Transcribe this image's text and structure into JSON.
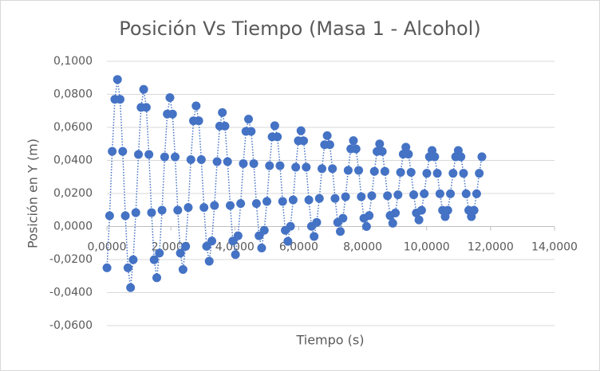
{
  "chart_data": {
    "type": "scatter",
    "title": "Posición Vs Tiempo (Masa 1 - Alcohol)",
    "x_label": "Tiempo (s)",
    "y_label": "Posición en Y (m)",
    "color": "#4472c4",
    "line_style": "dotted",
    "grid": true,
    "xlim": [
      0,
      14
    ],
    "ylim": [
      -0.06,
      0.1
    ],
    "xticks": [
      {
        "value": 0,
        "label": "0,0000"
      },
      {
        "value": 2,
        "label": "2,0000"
      },
      {
        "value": 4,
        "label": "4,0000"
      },
      {
        "value": 6,
        "label": "6,0000"
      },
      {
        "value": 8,
        "label": "8,0000"
      },
      {
        "value": 10,
        "label": "10,0000"
      },
      {
        "value": 12,
        "label": "12,0000"
      },
      {
        "value": 14,
        "label": "14,0000"
      }
    ],
    "yticks": [
      {
        "value": -0.06,
        "label": "-0,0600"
      },
      {
        "value": -0.04,
        "label": "-0,0400"
      },
      {
        "value": -0.02,
        "label": "-0,0200"
      },
      {
        "value": 0,
        "label": "0,0000"
      },
      {
        "value": 0.02,
        "label": "0,0200"
      },
      {
        "value": 0.04,
        "label": "0,0400"
      },
      {
        "value": 0.06,
        "label": "0,0600"
      },
      {
        "value": 0.08,
        "label": "0,0800"
      },
      {
        "value": 0.1,
        "label": "0,1000"
      }
    ],
    "x": [
      0.002,
      0.084,
      0.166,
      0.248,
      0.33,
      0.412,
      0.494,
      0.576,
      0.658,
      0.74,
      0.822,
      0.904,
      0.986,
      1.068,
      1.15,
      1.232,
      1.314,
      1.396,
      1.478,
      1.56,
      1.642,
      1.724,
      1.806,
      1.888,
      1.97,
      2.052,
      2.134,
      2.216,
      2.298,
      2.38,
      2.462,
      2.544,
      2.626,
      2.708,
      2.79,
      2.872,
      2.954,
      3.036,
      3.118,
      3.2,
      3.282,
      3.364,
      3.446,
      3.528,
      3.61,
      3.692,
      3.774,
      3.856,
      3.938,
      4.02,
      4.102,
      4.184,
      4.266,
      4.348,
      4.43,
      4.512,
      4.594,
      4.676,
      4.758,
      4.84,
      4.922,
      5.004,
      5.086,
      5.168,
      5.25,
      5.332,
      5.414,
      5.496,
      5.578,
      5.66,
      5.742,
      5.824,
      5.906,
      5.988,
      6.07,
      6.152,
      6.234,
      6.316,
      6.398,
      6.48,
      6.562,
      6.644,
      6.726,
      6.808,
      6.89,
      6.972,
      7.054,
      7.136,
      7.218,
      7.3,
      7.382,
      7.464,
      7.546,
      7.628,
      7.71,
      7.792,
      7.874,
      7.956,
      8.038,
      8.12,
      8.202,
      8.284,
      8.366,
      8.448,
      8.53,
      8.612,
      8.694,
      8.776,
      8.858,
      8.94,
      9.022,
      9.104,
      9.186,
      9.268,
      9.35,
      9.432,
      9.514,
      9.596,
      9.678,
      9.76,
      9.842,
      9.924,
      10.006,
      10.088,
      10.17,
      10.252,
      10.334,
      10.416,
      10.498,
      10.58,
      10.662,
      10.744,
      10.826,
      10.908,
      10.99,
      11.072,
      11.154,
      11.236,
      11.318,
      11.4,
      11.482,
      11.564,
      11.646,
      11.728
    ],
    "values": [
      -0.025,
      0.0065,
      0.0455,
      0.077,
      0.089,
      0.077,
      0.0455,
      0.0065,
      -0.025,
      -0.037,
      -0.0201,
      0.0084,
      0.0436,
      0.0721,
      0.083,
      0.0721,
      0.0436,
      0.0084,
      -0.0201,
      -0.031,
      -0.0161,
      0.0099,
      0.0421,
      0.0681,
      0.078,
      0.0681,
      0.0421,
      0.0099,
      -0.0161,
      -0.026,
      -0.012,
      0.0115,
      0.0405,
      0.064,
      0.073,
      0.064,
      0.0405,
      0.0115,
      -0.012,
      -0.021,
      -0.0088,
      0.0127,
      0.0393,
      0.0608,
      0.069,
      0.0608,
      0.0393,
      0.0127,
      -0.0088,
      -0.017,
      -0.0056,
      0.0139,
      0.0381,
      0.0576,
      0.065,
      0.0576,
      0.0381,
      0.0139,
      -0.0056,
      -0.013,
      -0.0023,
      0.0152,
      0.0368,
      0.0543,
      0.061,
      0.0543,
      0.0368,
      0.0152,
      -0.0023,
      -0.009,
      0.0001,
      0.0161,
      0.0359,
      0.0519,
      0.058,
      0.0519,
      0.0359,
      0.0161,
      0.0001,
      -0.006,
      0.0025,
      0.017,
      0.035,
      0.0495,
      0.055,
      0.0495,
      0.035,
      0.017,
      0.0025,
      -0.003,
      0.005,
      0.018,
      0.034,
      0.047,
      0.052,
      0.047,
      0.034,
      0.018,
      0.005,
      0,
      0.0066,
      0.0186,
      0.0334,
      0.0454,
      0.05,
      0.0454,
      0.0334,
      0.0186,
      0.0066,
      0.002,
      0.0082,
      0.0192,
      0.0328,
      0.0438,
      0.048,
      0.0438,
      0.0328,
      0.0192,
      0.0082,
      0.004,
      0.0098,
      0.0198,
      0.0322,
      0.0422,
      0.046,
      0.0422,
      0.0322,
      0.0198,
      0.0098,
      0.006,
      0.0098,
      0.0198,
      0.0322,
      0.0422,
      0.046,
      0.0422,
      0.0322,
      0.0198,
      0.0098,
      0.006,
      0.0098,
      0.0198,
      0.0322,
      0.0422
    ]
  }
}
